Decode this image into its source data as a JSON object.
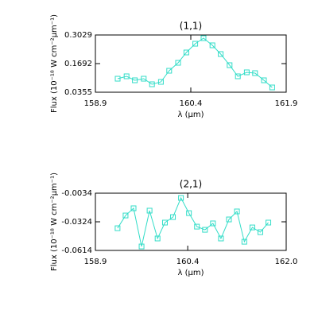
{
  "chart_data": [
    {
      "type": "line",
      "title": "(1,1)",
      "x_label": "λ (μm)",
      "y_label": "Flux (10⁻¹⁸ W cm⁻²μm⁻¹)",
      "xlim": [
        158.9,
        161.9
      ],
      "xticks": [
        158.9,
        160.4,
        161.9
      ],
      "ylim": [
        0.0355,
        0.3029
      ],
      "yticks": [
        0.0355,
        0.1692,
        0.3029
      ],
      "x": [
        159.25,
        159.39,
        159.52,
        159.66,
        159.79,
        159.93,
        160.06,
        160.2,
        160.33,
        160.47,
        160.6,
        160.74,
        160.87,
        161.01,
        161.14,
        161.28,
        161.41,
        161.55,
        161.68
      ],
      "series": [
        {
          "color": "#33ddc8",
          "values": [
            0.0986,
            0.1098,
            0.0912,
            0.0986,
            0.0726,
            0.0838,
            0.1358,
            0.1729,
            0.2212,
            0.262,
            0.288,
            0.2546,
            0.2138,
            0.1618,
            0.1098,
            0.1284,
            0.1246,
            0.0912,
            0.0578
          ]
        }
      ]
    },
    {
      "type": "line",
      "title": "(2,1)",
      "x_label": "λ (μm)",
      "y_label": "Flux (10⁻¹⁸ W cm⁻²μm⁻¹)",
      "xlim": [
        158.9,
        162.0
      ],
      "xticks": [
        158.9,
        160.4,
        {
          "value": 162.0,
          "label": "162.0"
        }
      ],
      "ylim": [
        -0.0614,
        -0.0034
      ],
      "yticks": [
        -0.0614,
        -0.0324,
        -0.0034
      ],
      "x": [
        159.26,
        159.39,
        159.52,
        159.65,
        159.78,
        159.91,
        160.03,
        160.16,
        160.29,
        160.42,
        160.55,
        160.68,
        160.81,
        160.94,
        161.07,
        161.2,
        161.32,
        161.45,
        161.58,
        161.71
      ],
      "series": [
        {
          "color": "#33ddc8",
          "values": [
            -0.0389,
            -0.026,
            -0.0187,
            -0.0574,
            -0.0211,
            -0.0493,
            -0.0332,
            -0.0276,
            -0.0082,
            -0.0236,
            -0.0373,
            -0.0405,
            -0.034,
            -0.0493,
            -0.03,
            -0.0219,
            -0.0526,
            -0.0381,
            -0.0429,
            -0.0332
          ]
        }
      ]
    }
  ]
}
